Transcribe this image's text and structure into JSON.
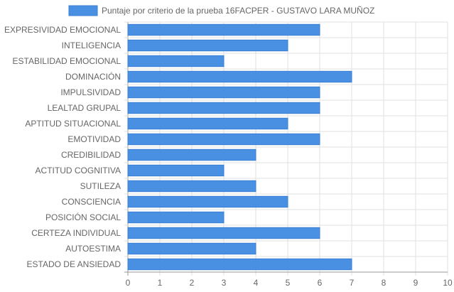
{
  "chart_data": {
    "type": "bar",
    "orientation": "horizontal",
    "categories": [
      "EXPRESIVIDAD EMOCIONAL",
      "INTELIGENCIA",
      "ESTABILIDAD EMOCIONAL",
      "DOMINACIÓN",
      "IMPULSIVIDAD",
      "LEALTAD GRUPAL",
      "APTITUD SITUACIONAL",
      "EMOTIVIDAD",
      "CREDIBILIDAD",
      "ACTITUD COGNITIVA",
      "SUTILEZA",
      "CONSCIENCIA",
      "POSICIÓN SOCIAL",
      "CERTEZA INDIVIDUAL",
      "AUTOESTIMA",
      "ESTADO DE ANSIEDAD"
    ],
    "series": [
      {
        "name": "Puntaje por criterio de la prueba 16FACPER - GUSTAVO LARA MUÑOZ",
        "values": [
          6,
          5,
          3,
          7,
          6,
          6,
          5,
          6,
          4,
          3,
          4,
          5,
          3,
          6,
          4,
          7
        ]
      }
    ],
    "xlim": [
      0,
      10
    ],
    "xticks": [
      "0",
      "1",
      "2",
      "3",
      "4",
      "5",
      "6",
      "7",
      "8",
      "9",
      "10"
    ],
    "grid": true,
    "legend_position": "top",
    "colors": {
      "bar_fill": "#4a90e2",
      "bar_stroke": "#3a7fd5",
      "grid": "#e0e0e0",
      "axis": "#999999",
      "text": "#666666"
    }
  }
}
